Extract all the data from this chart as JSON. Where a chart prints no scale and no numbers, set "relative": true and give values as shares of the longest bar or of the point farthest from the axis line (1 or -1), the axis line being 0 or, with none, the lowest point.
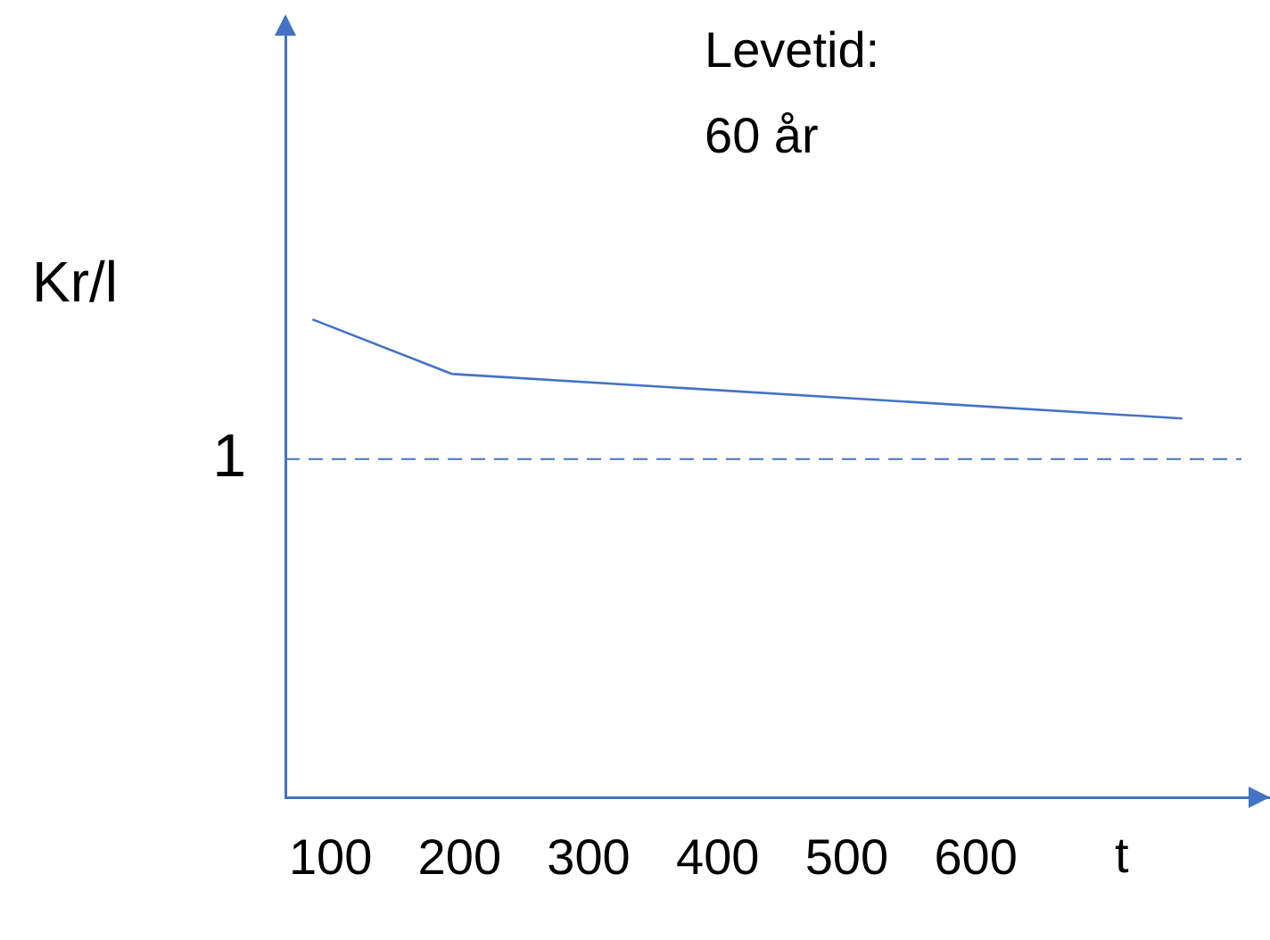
{
  "chart_data": {
    "type": "line",
    "relative": true,
    "ylabel": "Kr/l",
    "xlabel": "t",
    "x": [
      86,
      194,
      760
    ],
    "series": [
      {
        "color": "#4472c4",
        "values": [
          1.0,
          0.886,
          0.793
        ]
      }
    ],
    "xlim": [
      65,
      828
    ],
    "xticks": [
      100,
      200,
      300,
      400,
      500,
      600
    ],
    "ref_lines": [
      {
        "axis": "y",
        "value": 0.708,
        "label": "1",
        "color": "#4472c4",
        "line_style": "dashed"
      }
    ],
    "annotations": [
      "Levetid:\n60 år"
    ],
    "grid": false,
    "legend": false,
    "marker": "none",
    "line_style": "solid"
  }
}
